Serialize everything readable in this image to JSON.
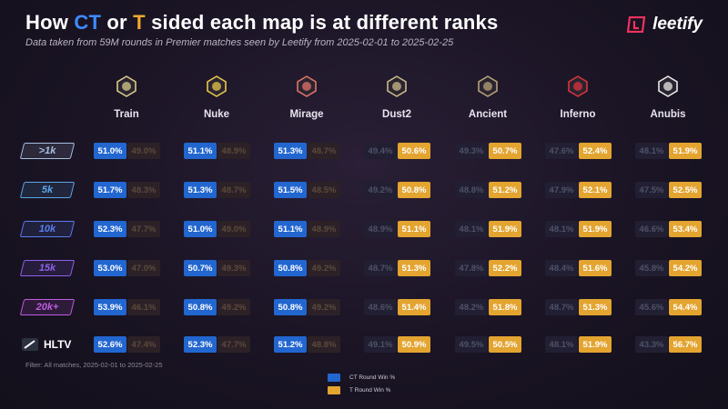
{
  "header": {
    "title_prefix": "How ",
    "title_ct": "CT",
    "title_or": " or ",
    "title_t": "T",
    "title_suffix": " sided each map is at different ranks",
    "subtitle": "Data taken from 59M rounds in Premier matches seen by Leetify from 2025-02-01 to 2025-02-25",
    "brand": "leetify"
  },
  "colors": {
    "ct": "#2266d0",
    "t": "#e3a430"
  },
  "footer": {
    "filter": "Filter: All matches, 2025-02-01 to 2025-02-25",
    "legend_ct": "CT Round Win %",
    "legend_t": "T Round Win %"
  },
  "chart_data": {
    "type": "table",
    "maps": [
      "Train",
      "Nuke",
      "Mirage",
      "Dust2",
      "Ancient",
      "Inferno",
      "Anubis"
    ],
    "ranks": [
      {
        "label": ">1k",
        "color": "#a9bfe0"
      },
      {
        "label": "5k",
        "color": "#5aa6e6"
      },
      {
        "label": "10k",
        "color": "#5b7cf0"
      },
      {
        "label": "15k",
        "color": "#8d62e8"
      },
      {
        "label": "20k+",
        "color": "#c05ce0"
      },
      {
        "label": "HLTV",
        "color": "#ffffff"
      }
    ],
    "ct_win": [
      [
        "51.0%",
        "51.1%",
        "51.3%",
        "49.4%",
        "49.3%",
        "47.6%",
        "48.1%"
      ],
      [
        "51.7%",
        "51.3%",
        "51.5%",
        "49.2%",
        "48.8%",
        "47.9%",
        "47.5%"
      ],
      [
        "52.3%",
        "51.0%",
        "51.1%",
        "48.9%",
        "48.1%",
        "48.1%",
        "46.6%"
      ],
      [
        "53.0%",
        "50.7%",
        "50.8%",
        "48.7%",
        "47.8%",
        "48.4%",
        "45.8%"
      ],
      [
        "53.9%",
        "50.8%",
        "50.8%",
        "48.6%",
        "48.2%",
        "48.7%",
        "45.6%"
      ],
      [
        "52.6%",
        "52.3%",
        "51.2%",
        "49.1%",
        "49.5%",
        "48.1%",
        "43.3%"
      ]
    ],
    "t_win": [
      [
        "49.0%",
        "48.9%",
        "48.7%",
        "50.6%",
        "50.7%",
        "52.4%",
        "51.9%"
      ],
      [
        "48.3%",
        "48.7%",
        "48.5%",
        "50.8%",
        "51.2%",
        "52.1%",
        "52.5%"
      ],
      [
        "47.7%",
        "49.0%",
        "48.9%",
        "51.1%",
        "51.9%",
        "51.9%",
        "53.4%"
      ],
      [
        "47.0%",
        "49.3%",
        "49.2%",
        "51.3%",
        "52.2%",
        "51.6%",
        "54.2%"
      ],
      [
        "46.1%",
        "49.2%",
        "49.2%",
        "51.4%",
        "51.8%",
        "51.3%",
        "54.4%"
      ],
      [
        "47.4%",
        "47.7%",
        "48.8%",
        "50.9%",
        "50.5%",
        "51.9%",
        "56.7%"
      ]
    ]
  }
}
